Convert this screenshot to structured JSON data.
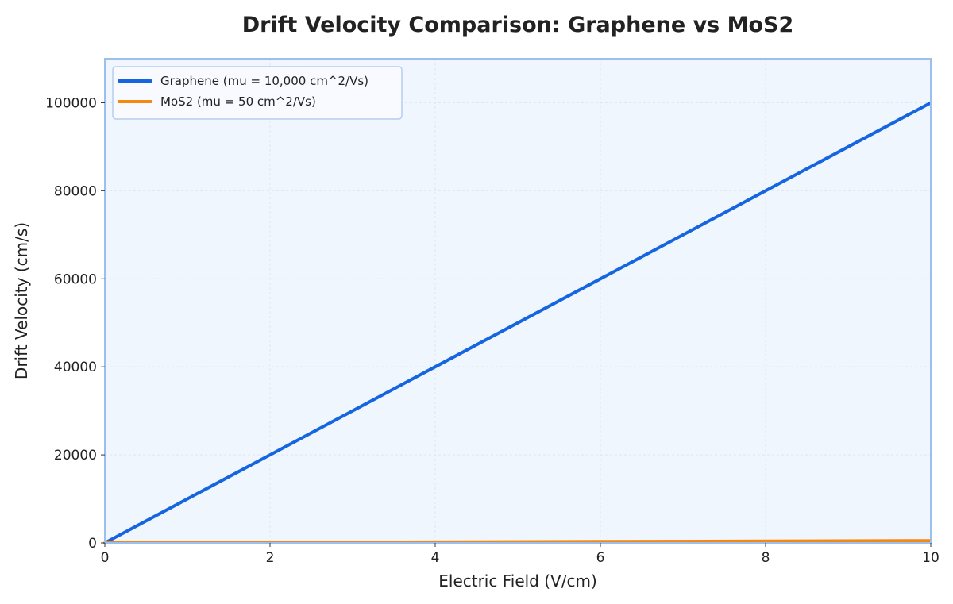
{
  "chart_data": {
    "type": "line",
    "title": "Drift Velocity Comparison: Graphene vs MoS2",
    "xlabel": "Electric Field (V/cm)",
    "ylabel": "Drift Velocity (cm/s)",
    "xlim": [
      0,
      10
    ],
    "ylim": [
      0,
      110000
    ],
    "xticks": [
      0,
      2,
      4,
      6,
      8,
      10
    ],
    "yticks": [
      0,
      20000,
      40000,
      60000,
      80000,
      100000
    ],
    "grid": true,
    "legend_position": "top-left",
    "series": [
      {
        "name": "Graphene (mu = 10,000 cm^2/Vs)",
        "color": "#1565e0",
        "x": [
          0,
          2,
          4,
          6,
          8,
          10
        ],
        "y": [
          0,
          20000,
          40000,
          60000,
          80000,
          100000
        ]
      },
      {
        "name": "MoS2 (mu = 50 cm^2/Vs)",
        "color": "#f5890f",
        "x": [
          0,
          2,
          4,
          6,
          8,
          10
        ],
        "y": [
          0,
          100,
          200,
          300,
          400,
          500
        ]
      }
    ],
    "colors": {
      "plot_background": "#f0f6fe",
      "frame": "#9dbff0",
      "grid": "#dde6f2"
    }
  }
}
